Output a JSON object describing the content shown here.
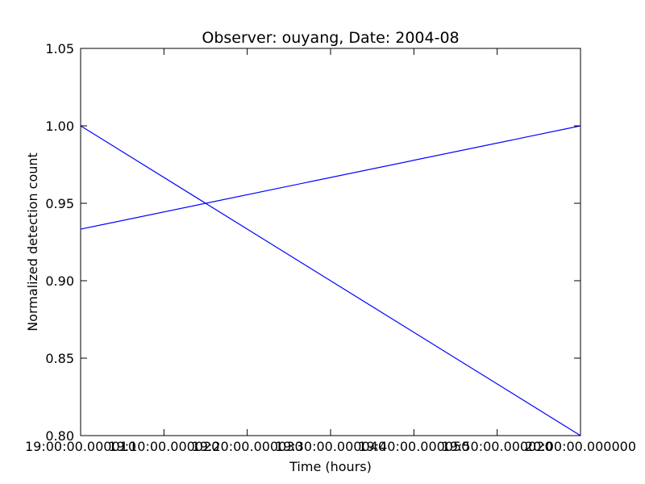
{
  "chart_data": {
    "type": "line",
    "title": "Observer: ouyang, Date: 2004-08",
    "xlabel": "Time (hours)",
    "ylabel": "Normalized detection count",
    "xlim": [
      19.0,
      20.0
    ],
    "ylim": [
      0.8,
      1.05
    ],
    "x_ticks": [
      19.0,
      19.1667,
      19.3333,
      19.5,
      19.6667,
      19.8333,
      20.0
    ],
    "x_tick_labels": [
      "19:00:00.000010",
      "19:10:00.000020",
      "19:20:00.000030",
      "19:30:00.000040",
      "19:40:00.000050",
      "19:50:00.000020",
      "20:00:00.000000"
    ],
    "y_ticks": [
      0.8,
      0.85,
      0.9,
      0.95,
      1.0,
      1.05
    ],
    "y_tick_labels": [
      "0.80",
      "0.85",
      "0.90",
      "0.95",
      "1.00",
      "1.05"
    ],
    "grid": false,
    "line_color": "#0000ff",
    "series": [
      {
        "x": [
          19.0,
          20.0
        ],
        "values": [
          1.0,
          0.8
        ]
      },
      {
        "x": [
          19.0,
          20.0
        ],
        "values": [
          0.9333,
          1.0
        ]
      }
    ]
  }
}
